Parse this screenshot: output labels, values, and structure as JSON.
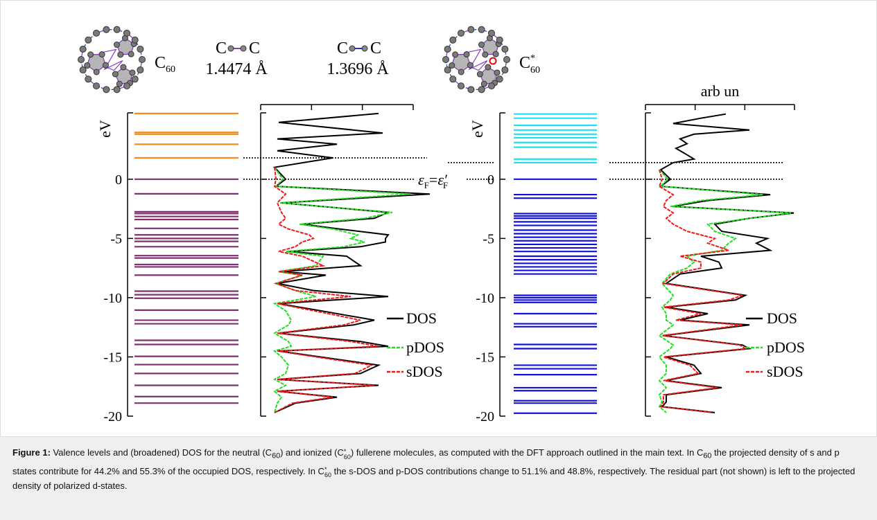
{
  "molecules": [
    {
      "symbol": "C",
      "subscript": "60"
    },
    {
      "symbol": "C",
      "superscript": "*",
      "subscript": "60"
    }
  ],
  "bonds": [
    {
      "atoms": [
        "C",
        "C"
      ],
      "length": "1.4474 Å"
    },
    {
      "atoms": [
        "C",
        "C"
      ],
      "length": "1.3696 Å"
    }
  ],
  "fermi_label": {
    "left": "ε",
    "left_sub": "F",
    "eq": "=",
    "right": "ε′",
    "right_sub": "F"
  },
  "chart_data": [
    {
      "type": "levels",
      "ylabel": "eV",
      "ylim": [
        -20,
        5.6
      ],
      "yticks": [
        0,
        -5,
        -10,
        -15,
        -20
      ],
      "colors": {
        "occupied": "#7f2f6f",
        "unoccupied": "#f08c1e"
      },
      "unoccupied": [
        5.55,
        3.95,
        3.8,
        2.95,
        1.8
      ],
      "occupied": [
        0,
        -1.23,
        -2.75,
        -2.9,
        -3.15,
        -3.4,
        -4.15,
        -4.7,
        -5.0,
        -5.25,
        -5.7,
        -6.45,
        -6.65,
        -7.2,
        -7.4,
        -8.1,
        -9.45,
        -9.75,
        -10.05,
        -11.05,
        -11.9,
        -12.2,
        -13.6,
        -13.95,
        -14.95,
        -15.65,
        -16.4,
        -17.4,
        -18.35,
        -18.9
      ]
    },
    {
      "type": "dos",
      "ylim": [
        -20,
        5.6
      ],
      "yticks": [
        0,
        -5,
        -10,
        -15,
        -20
      ],
      "xlim": [
        -0.1,
        1
      ],
      "reference_lines": [
        1.8,
        0
      ],
      "legend": "lower right",
      "x": [
        5.55,
        4.8,
        3.9,
        3.4,
        2.95,
        2.4,
        1.8,
        1.0,
        0,
        -0.6,
        -1.25,
        -2.0,
        -2.8,
        -3.3,
        -3.8,
        -4.2,
        -4.7,
        -5.0,
        -5.3,
        -5.7,
        -6.1,
        -6.5,
        -7.3,
        -7.8,
        -8.1,
        -8.8,
        -9.4,
        -9.9,
        -10.5,
        -11.1,
        -11.9,
        -12.3,
        -13.0,
        -13.7,
        -14.1,
        -14.5,
        -15.0,
        -15.7,
        -16.4,
        -16.9,
        -17.4,
        -17.9,
        -18.4,
        -18.9,
        -19.7
      ],
      "series": [
        {
          "name": "DOS",
          "color": "#000000",
          "style": "solid",
          "values": [
            0.75,
            0.03,
            0.78,
            0.02,
            0.45,
            0.02,
            0.42,
            0,
            0.08,
            0.01,
            1.12,
            0.05,
            0.82,
            0.72,
            0.2,
            0.47,
            0.82,
            0.8,
            0.8,
            0.62,
            0.1,
            0.52,
            0.62,
            0.05,
            0.37,
            0.02,
            0.28,
            0.82,
            0.03,
            0.33,
            0.72,
            0.57,
            0.03,
            0.62,
            0.82,
            0.03,
            0.33,
            0.75,
            0.62,
            0.02,
            0.75,
            0.02,
            0.45,
            0.15,
            0
          ]
        },
        {
          "name": "pDOS",
          "color": "#22dd22",
          "style": "dashed",
          "values": [
            null,
            null,
            null,
            null,
            null,
            null,
            null,
            0,
            0.06,
            0.01,
            0.98,
            0.04,
            0.85,
            0.65,
            0.18,
            0.42,
            0.6,
            0.55,
            0.65,
            0.5,
            0.08,
            0.35,
            0.3,
            0.03,
            0.2,
            0.01,
            0.15,
            0.3,
            0.0,
            0.08,
            0.12,
            0.1,
            0.0,
            0.1,
            0.12,
            0.0,
            0.05,
            0.1,
            0.08,
            0.0,
            0.08,
            0.0,
            0.05,
            0.02,
            0
          ]
        },
        {
          "name": "sDOS",
          "color": "#ee1a1a",
          "style": "dashed",
          "values": [
            null,
            null,
            null,
            null,
            null,
            null,
            null,
            0,
            0.01,
            0,
            0.08,
            0.02,
            0.05,
            0.08,
            0.03,
            0.1,
            0.25,
            0.28,
            0.2,
            0.15,
            0.03,
            0.2,
            0.35,
            0.03,
            0.2,
            0.01,
            0.15,
            0.55,
            0.02,
            0.28,
            0.62,
            0.5,
            0.02,
            0.55,
            0.75,
            0.02,
            0.3,
            0.7,
            0.58,
            0.02,
            0.72,
            0.02,
            0.42,
            0.13,
            0
          ]
        }
      ]
    },
    {
      "type": "levels",
      "ylabel": "eV",
      "ylim": [
        -20,
        5.6
      ],
      "yticks": [
        0,
        -5,
        -10,
        -15,
        -20
      ],
      "colors": {
        "occupied": "#1010e0",
        "unoccupied": "#1ee0f0"
      },
      "unoccupied": [
        5.5,
        5.15,
        4.55,
        4.15,
        3.8,
        3.5,
        3.1,
        2.7,
        1.7,
        1.4
      ],
      "occupied": [
        0,
        -1.3,
        -1.6,
        -2.9,
        -3.1,
        -3.3,
        -3.6,
        -3.9,
        -4.3,
        -4.6,
        -4.9,
        -5.2,
        -5.5,
        -5.8,
        -6.1,
        -6.5,
        -6.8,
        -7.1,
        -7.4,
        -7.7,
        -8.0,
        -9.8,
        -10.0,
        -10.2,
        -10.4,
        -11.35,
        -12.2,
        -12.45,
        -13.95,
        -14.3,
        -15.7,
        -16.0,
        -16.5,
        -17.6,
        -17.85,
        -18.7,
        -18.9,
        -19.75
      ]
    },
    {
      "type": "dos",
      "xlabel": "arb un",
      "ylim": [
        -20,
        5.6
      ],
      "yticks": [
        0,
        -5,
        -10,
        -15,
        -20
      ],
      "xlim": [
        -0.1,
        1
      ],
      "reference_lines": [
        1.4,
        0
      ],
      "legend": "lower right",
      "x": [
        5.5,
        5.15,
        4.7,
        4.15,
        3.8,
        3.4,
        3.0,
        2.6,
        2.2,
        1.7,
        1.4,
        0.8,
        0,
        -0.6,
        -1.3,
        -1.8,
        -2.3,
        -2.85,
        -3.3,
        -3.8,
        -4.4,
        -5.0,
        -5.4,
        -6.0,
        -6.5,
        -7.0,
        -7.5,
        -8.0,
        -8.8,
        -9.8,
        -10.2,
        -10.8,
        -11.35,
        -11.9,
        -12.3,
        -13.2,
        -14.0,
        -14.3,
        -15.0,
        -15.7,
        -16.4,
        -17.0,
        -17.6,
        -18.2,
        -18.8,
        -19.2,
        -19.7
      ],
      "series": [
        {
          "name": "DOS",
          "color": "#000000",
          "style": "solid",
          "values": [
            0.48,
            0.3,
            0.1,
            0.65,
            0.25,
            0.15,
            0.2,
            0.12,
            0.18,
            0.25,
            0.1,
            0.01,
            0.08,
            0.01,
            0.8,
            0.35,
            0.1,
            0.97,
            0.65,
            0.4,
            0.45,
            0.78,
            0.7,
            0.8,
            0.3,
            0.43,
            0.45,
            0.15,
            0.05,
            0.62,
            0.55,
            0.05,
            0.35,
            0.15,
            0.65,
            0.03,
            0.6,
            0.65,
            0.05,
            0.25,
            0.3,
            0.05,
            0.45,
            0.05,
            0.05,
            0.02,
            0.4
          ]
        },
        {
          "name": "pDOS",
          "color": "#22dd22",
          "style": "dashed",
          "values": [
            null,
            null,
            null,
            null,
            null,
            null,
            null,
            null,
            null,
            null,
            null,
            0,
            0.06,
            0.01,
            0.75,
            0.3,
            0.08,
            0.95,
            0.65,
            0.35,
            0.4,
            0.55,
            0.5,
            0.45,
            0.2,
            0.25,
            0.2,
            0.08,
            0.02,
            0.1,
            0.08,
            0.02,
            0.05,
            0.05,
            0.1,
            0.0,
            0.1,
            0.08,
            0.0,
            0.05,
            0.05,
            0.0,
            0.05,
            0.0,
            0.02,
            0.0,
            0.05
          ]
        },
        {
          "name": "sDOS",
          "color": "#ee1a1a",
          "style": "dashed",
          "values": [
            null,
            null,
            null,
            null,
            null,
            null,
            null,
            null,
            null,
            null,
            null,
            0,
            0.02,
            0,
            0.1,
            0.05,
            0.03,
            0.1,
            0.05,
            0.1,
            0.2,
            0.4,
            0.35,
            0.5,
            0.15,
            0.3,
            0.3,
            0.1,
            0.03,
            0.6,
            0.5,
            0.03,
            0.3,
            0.12,
            0.6,
            0.02,
            0.58,
            0.62,
            0.03,
            0.22,
            0.28,
            0.03,
            0.42,
            0.03,
            0.03,
            0.01,
            0.38
          ]
        }
      ]
    }
  ],
  "caption": {
    "label": "Figure 1:",
    "parts": [
      " Valence levels and (broadened) DOS for the neutral (C",
      {
        "sub": "60"
      },
      ") and ionized (C",
      {
        "sup": "*",
        "sub": "60"
      },
      ") fullerene molecules, as computed with the DFT approach outlined in the main text. In C",
      {
        "sub": "60"
      },
      " the projected density of s and p states contribute for 44.2% and 55.3% of the occupied DOS, respectively. In C",
      {
        "sup": "*",
        "sub": "60"
      },
      " the s-DOS and p-DOS contributions change to 51.1% and 48.8%, respectively. The residual part (not shown) is left to the projected density of polarized d-states."
    ]
  }
}
